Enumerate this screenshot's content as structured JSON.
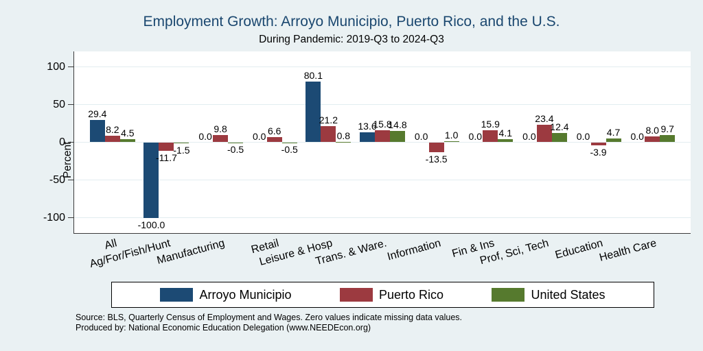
{
  "title": "Employment Growth: Arroyo Municipio, Puerto Rico, and the U.S.",
  "subtitle": "During Pandemic: 2019-Q3 to 2024-Q3",
  "chart_data": {
    "type": "bar",
    "categories": [
      "All",
      "Ag/For/Fish/Hunt",
      "Manufacturing",
      "Retail",
      "Leisure & Hosp",
      "Trans. & Ware.",
      "Information",
      "Fin & Ins",
      "Prof, Sci, Tech",
      "Education",
      "Health Care"
    ],
    "series": [
      {
        "name": "Arroyo Municipio",
        "color": "#1c4a74",
        "values": [
          29.4,
          -100.0,
          0.0,
          0.0,
          80.1,
          13.6,
          0.0,
          0.0,
          0.0,
          0.0,
          0.0
        ]
      },
      {
        "name": "Puerto Rico",
        "color": "#9c3a40",
        "values": [
          8.2,
          -11.7,
          9.8,
          6.6,
          21.2,
          15.8,
          -13.5,
          15.9,
          23.4,
          -3.9,
          8.0
        ]
      },
      {
        "name": "United States",
        "color": "#567a2e",
        "values": [
          4.5,
          -1.5,
          -0.5,
          -0.5,
          0.8,
          14.8,
          1.0,
          4.1,
          12.4,
          4.7,
          9.7
        ]
      }
    ],
    "ylabel": "Percent",
    "yticks": [
      100,
      50,
      0,
      -50,
      -100
    ],
    "ylim": [
      -120,
      120
    ],
    "grid": true,
    "legend_position": "bottom",
    "value_labels_shown": true,
    "value_label_decimals": 1
  },
  "notes": {
    "line1": "Source: BLS, Quarterly Census of Employment and Wages. Zero values indicate missing data values.",
    "line2": "Produced by: National Economic Education Delegation (www.NEEDEcon.org)"
  },
  "colors": {
    "background": "#eaf1f3",
    "plot_background": "#ffffff",
    "gridline": "#e2edf0",
    "axis": "#3a3a3a",
    "title_text": "#1a476f"
  }
}
